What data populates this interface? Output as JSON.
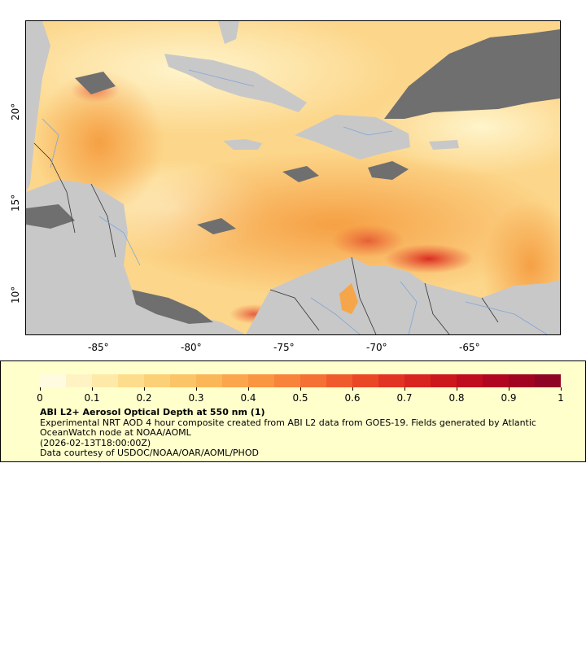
{
  "map": {
    "x_ticks": [
      "-85°",
      "-80°",
      "-75°",
      "-70°",
      "-65°"
    ],
    "y_ticks": [
      "20°",
      "15°",
      "10°"
    ],
    "colors": {
      "land": "#c8c8c8",
      "cloud": "#6f6f6f",
      "rivers": "#7fa6d6",
      "borders": "#333333",
      "aod_low": "#fef2c0",
      "aod_mid": "#fbbd5b",
      "aod_high": "#e8412a"
    }
  },
  "legend": {
    "colorbar_ticks": [
      "0",
      "0.1",
      "0.2",
      "0.3",
      "0.4",
      "0.5",
      "0.6",
      "0.7",
      "0.8",
      "0.9",
      "1"
    ],
    "title": "ABI L2+ Aerosol Optical Depth at 550 nm (1)",
    "lines": [
      "Experimental NRT AOD 4 hour composite created from ABI L2 data from GOES-19. Fields generated by Atlantic OceanWatch node at NOAA/AOML",
      "(2026-02-13T18:00:00Z)",
      "Data courtesy of USDOC/NOAA/OAR/AOML/PHOD"
    ]
  }
}
